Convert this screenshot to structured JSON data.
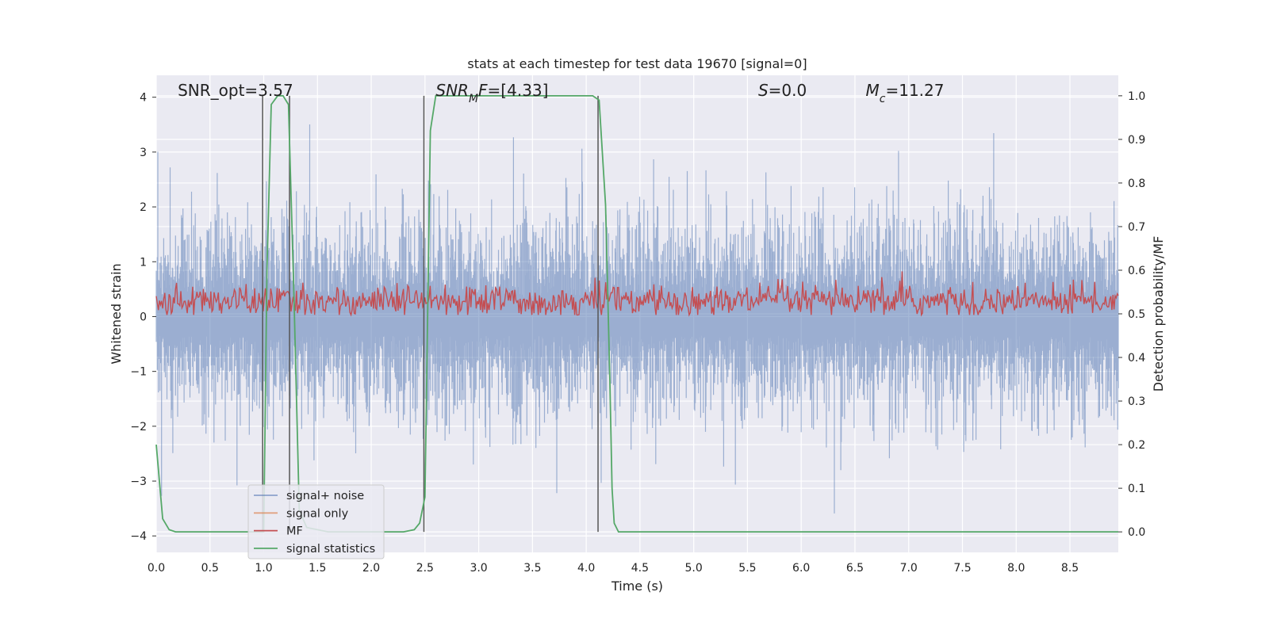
{
  "chart_data": {
    "type": "line",
    "title": "stats at each timestep for test data 19670 [signal=0]",
    "xlabel": "Time (s)",
    "ylabel": "Whitened strain",
    "ylabel_right": "Detection probability/MF",
    "xlim": [
      0.0,
      8.95
    ],
    "ylim": [
      -4.3,
      4.4
    ],
    "ylim_right": [
      -0.047,
      1.047
    ],
    "x_ticks": [
      "0.0",
      "0.5",
      "1.0",
      "1.5",
      "2.0",
      "2.5",
      "3.0",
      "3.5",
      "4.0",
      "4.5",
      "5.0",
      "5.5",
      "6.0",
      "6.5",
      "7.0",
      "7.5",
      "8.0",
      "8.5"
    ],
    "y_ticks": [
      "4",
      "3",
      "2",
      "1",
      "0",
      "−1",
      "−2",
      "−3",
      "−4"
    ],
    "y_ticks_right": [
      "1.0",
      "0.9",
      "0.8",
      "0.7",
      "0.6",
      "0.5",
      "0.4",
      "0.3",
      "0.2",
      "0.1",
      "0.0"
    ],
    "grid": true,
    "legend_position": "lower-left",
    "annotations": [
      {
        "text": "SNR_opt=3.57",
        "x": 0.2
      },
      {
        "text": "SNR_MF=[4.33]",
        "x": 2.6
      },
      {
        "text": "S=0.0",
        "x": 5.6
      },
      {
        "text": "M_c=11.27",
        "x": 6.6
      }
    ],
    "series": [
      {
        "name": "signal+ noise",
        "color": "#4c72b0",
        "axis": "left",
        "style": "dense noise, roughly symmetric about 0",
        "x_range": [
          0.0,
          8.95
        ],
        "typical_envelope": [
          -2.0,
          2.0
        ],
        "peak_extent": [
          -3.7,
          4.0
        ]
      },
      {
        "name": "signal only",
        "color": "#dd8452",
        "axis": "left",
        "style": "flat, not visible",
        "values": []
      },
      {
        "name": "MF",
        "color": "#c44e52",
        "axis": "left",
        "style": "dense positive noise",
        "x_range": [
          0.0,
          8.95
        ],
        "typical_range": [
          0.05,
          0.6
        ],
        "peak": 0.95
      },
      {
        "name": "signal statistics",
        "color": "#55a868",
        "axis": "right",
        "x": [
          0.0,
          0.06,
          0.12,
          0.18,
          0.3,
          0.6,
          0.9,
          0.97,
          1.0,
          1.03,
          1.07,
          1.13,
          1.18,
          1.23,
          1.28,
          1.33,
          1.4,
          1.6,
          2.0,
          2.3,
          2.4,
          2.45,
          2.5,
          2.55,
          2.6,
          2.65,
          2.8,
          3.2,
          3.6,
          3.9,
          4.06,
          4.12,
          4.18,
          4.22,
          4.24,
          4.26,
          4.3,
          4.5,
          5.0,
          6.0,
          7.0,
          8.0,
          8.95
        ],
        "values": [
          0.2,
          0.03,
          0.005,
          0.0,
          0.0,
          0.0,
          0.0,
          0.0,
          0.0,
          0.6,
          0.98,
          1.0,
          1.0,
          0.98,
          0.55,
          0.05,
          0.01,
          0.0,
          0.0,
          0.0,
          0.005,
          0.02,
          0.08,
          0.92,
          1.0,
          1.0,
          1.0,
          1.0,
          1.0,
          1.0,
          1.0,
          0.99,
          0.75,
          0.35,
          0.1,
          0.02,
          0.0,
          0.0,
          0.0,
          0.0,
          0.0,
          0.0,
          0.0
        ]
      }
    ],
    "vertical_markers": [
      0.99,
      1.24,
      2.49,
      4.11
    ]
  }
}
